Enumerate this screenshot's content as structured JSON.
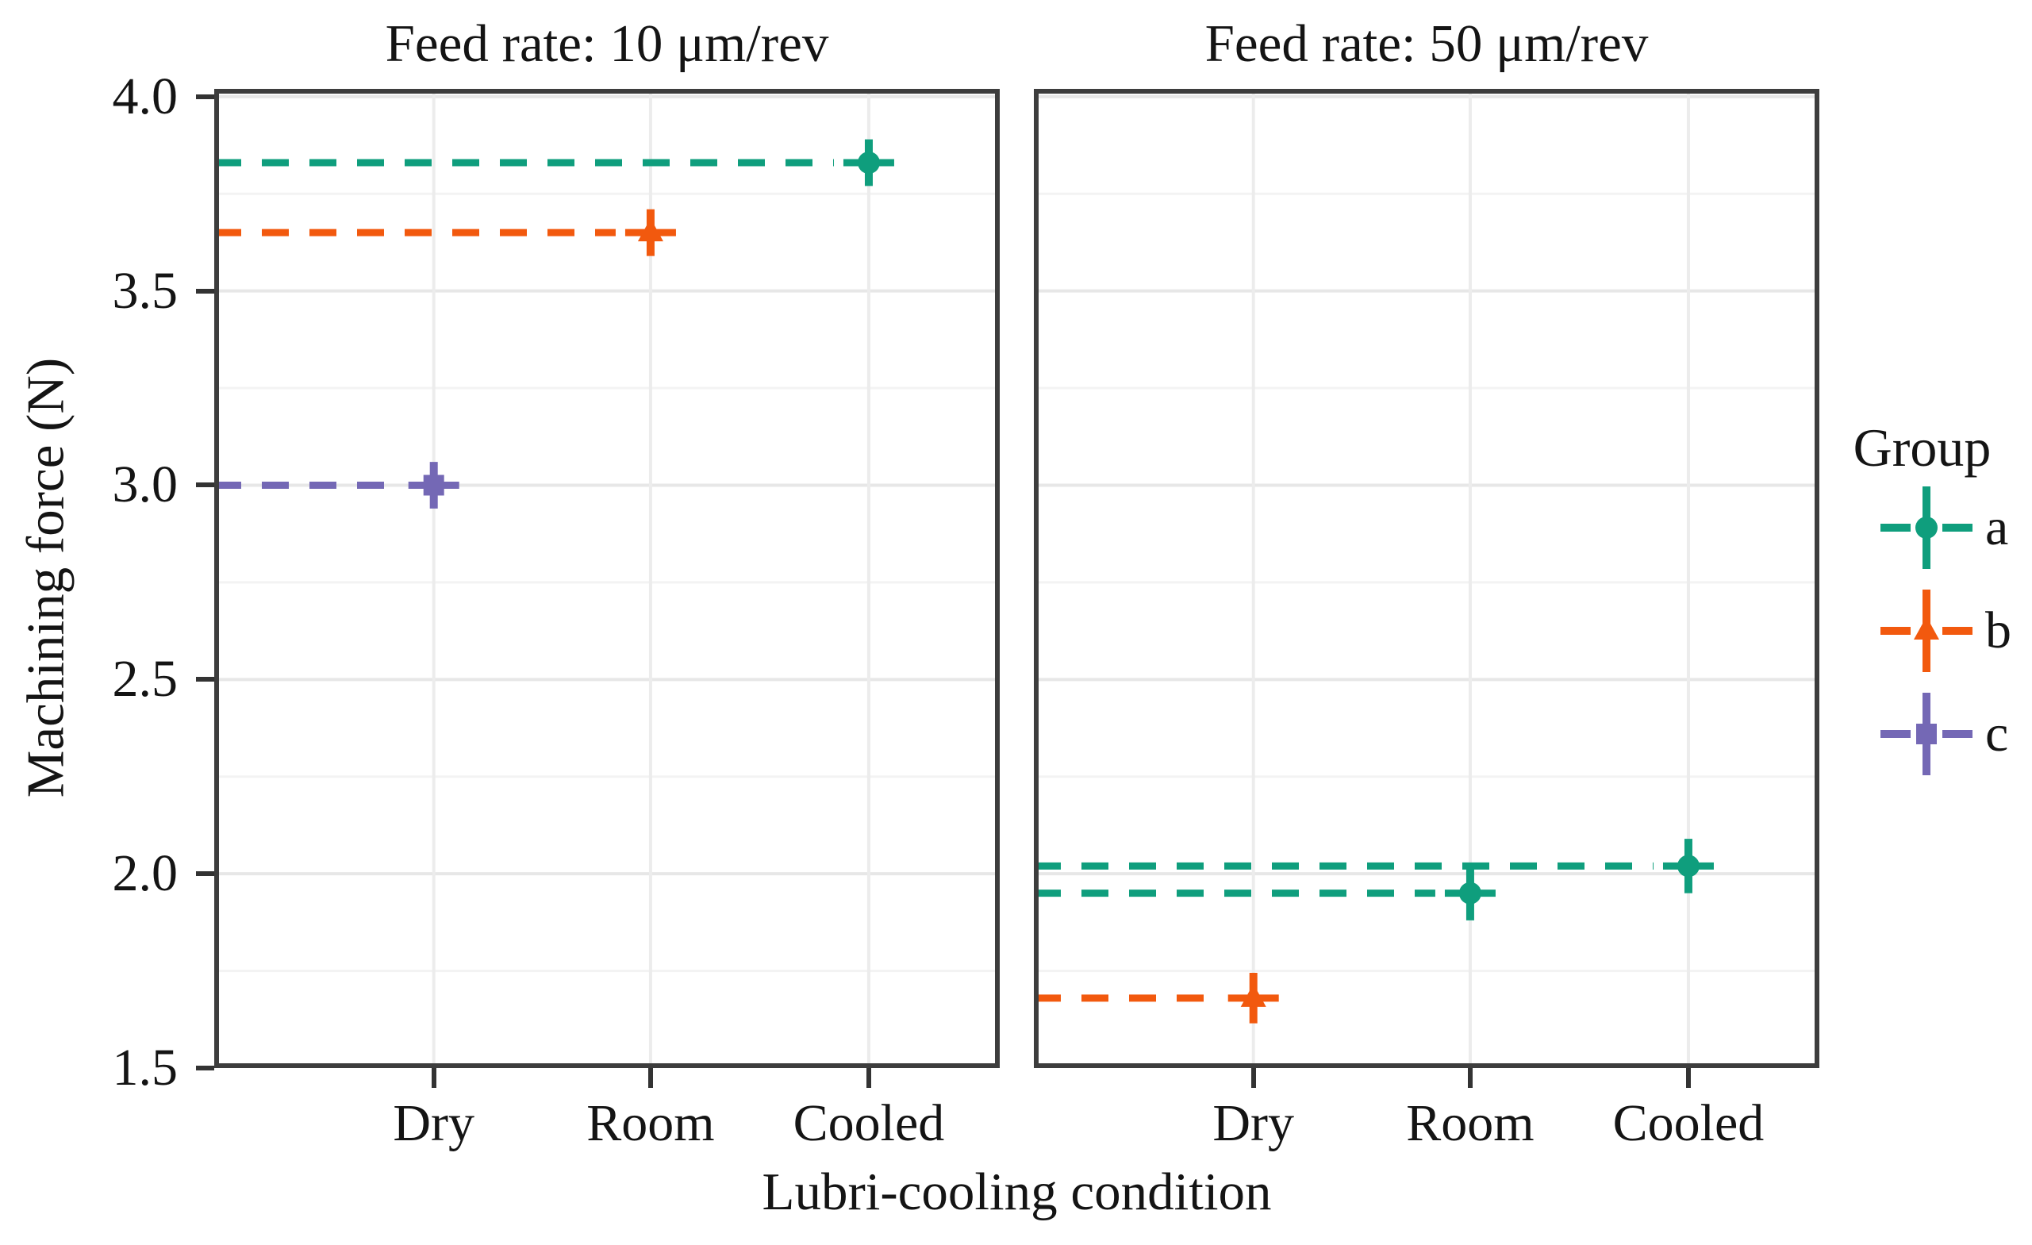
{
  "chart_data": {
    "type": "scatter",
    "xlabel": "Lubri-cooling condition",
    "ylabel": "Machining force (N)",
    "x_categories": [
      "Dry",
      "Room",
      "Cooled"
    ],
    "y_tick_labels": [
      "4.0",
      "3.5",
      "3.0",
      "2.5",
      "2.0",
      "1.5"
    ],
    "ylim": [
      1.5,
      4.02
    ],
    "grid": "major and minor horizontal, major vertical at categories",
    "facets": [
      {
        "label": "Feed rate: 10 μm/rev",
        "points": [
          {
            "x": "Dry",
            "group": "c",
            "y": 3.0,
            "yerr": 0.06
          },
          {
            "x": "Room",
            "group": "b",
            "y": 3.65,
            "yerr": 0.06
          },
          {
            "x": "Cooled",
            "group": "a",
            "y": 3.83,
            "yerr": 0.06
          }
        ]
      },
      {
        "label": "Feed rate: 50 μm/rev",
        "points": [
          {
            "x": "Dry",
            "group": "b",
            "y": 1.68,
            "yerr": 0.065
          },
          {
            "x": "Room",
            "group": "a",
            "y": 1.95,
            "yerr": 0.07
          },
          {
            "x": "Cooled",
            "group": "a",
            "y": 2.02,
            "yerr": 0.07
          }
        ]
      }
    ],
    "legend": {
      "title": "Group",
      "position": "right",
      "entries": [
        {
          "label": "a",
          "marker": "circle",
          "color": "#0f9e7d"
        },
        {
          "label": "b",
          "marker": "triangle",
          "color": "#f2590e"
        },
        {
          "label": "c",
          "marker": "square",
          "color": "#7468b5"
        }
      ]
    },
    "colors": {
      "grid_major": "#e7e7e7",
      "grid_minor": "#f3f3f3",
      "grid_vertical": "#ececec",
      "panel_border": "#3d3d3d",
      "tick": "#333333",
      "text": "#141414"
    },
    "line_style": "dashed leader line from panel left edge to each marker, colored by group"
  }
}
